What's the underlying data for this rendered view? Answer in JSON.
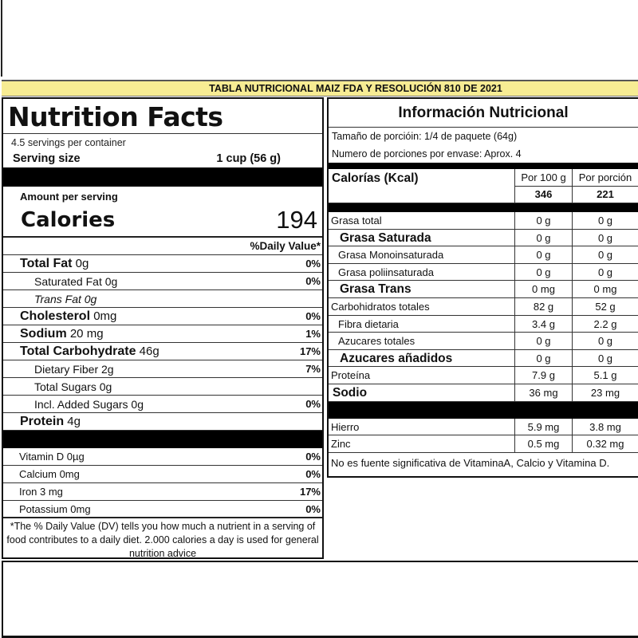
{
  "banner": "TABLA NUTRICIONAL MAIZ FDA Y RESOLUCIÓN 810 DE 2021",
  "left": {
    "title": "Nutrition Facts",
    "servings": "4.5 servings per container",
    "serving_size_label": "Serving size",
    "serving_size_value": "1 cup (56 g)",
    "amount_per_serving": "Amount per serving",
    "calories_label": "Calories",
    "calories_value": "194",
    "dv_header": "%Daily Value*",
    "rows": [
      {
        "name": "Total Fat",
        "amount": "0g",
        "pct": "0%",
        "style": "main"
      },
      {
        "name": "Saturated Fat 0g",
        "amount": "",
        "pct": "0%",
        "style": "ind"
      },
      {
        "name": "Trans Fat 0g",
        "amount": "",
        "pct": "",
        "style": "ind-italic"
      },
      {
        "name": "Cholesterol",
        "amount": "0mg",
        "pct": "0%",
        "style": "main"
      },
      {
        "name": "Sodium",
        "amount": "20 mg",
        "pct": "1%",
        "style": "main"
      },
      {
        "name": "Total Carbohydrate",
        "amount": "46g",
        "pct": "17%",
        "style": "main"
      },
      {
        "name": "Dietary Fiber 2g",
        "amount": "",
        "pct": "7%",
        "style": "ind"
      },
      {
        "name": "Total Sugars 0g",
        "amount": "",
        "pct": "",
        "style": "ind"
      },
      {
        "name": "Incl. Added Sugars 0g",
        "amount": "",
        "pct": "0%",
        "style": "ind"
      },
      {
        "name": "Protein",
        "amount": "4g",
        "pct": "",
        "style": "main"
      }
    ],
    "micros": [
      {
        "name": "Vitamin D  0µg",
        "pct": "0%"
      },
      {
        "name": "Calcium 0mg",
        "pct": "0%"
      },
      {
        "name": "Iron 3 mg",
        "pct": "17%"
      },
      {
        "name": "Potassium 0mg",
        "pct": "0%"
      }
    ],
    "footnote": "*The % Daily Value (DV) tells you how much a nutrient in a serving of food contributes to a daily diet. 2.000 calories a day is used for general nutrition advice"
  },
  "right": {
    "title": "Información Nutricional",
    "portion": "Tamaño de porcióin: 1/4 de paquete (64g)",
    "portions_per_pack": "Numero de porciones por envase: Aprox. 4",
    "calories_label": "Calorías (Kcal)",
    "col1": "Por 100 g",
    "col2": "Por porción",
    "cal1": "346",
    "cal2": "221",
    "rows": [
      {
        "name": "Grasa total",
        "v1": "0 g",
        "v2": "0 g",
        "style": ""
      },
      {
        "name": "Grasa Saturada",
        "v1": "0 g",
        "v2": "0 g",
        "style": "bold"
      },
      {
        "name": "Grasa Monoinsaturada",
        "v1": "0 g",
        "v2": "0 g",
        "style": "ind"
      },
      {
        "name": "Grasa poliinsaturada",
        "v1": "0 g",
        "v2": "0 g",
        "style": "ind"
      },
      {
        "name": "Grasa Trans",
        "v1": "0 mg",
        "v2": "0 mg",
        "style": "bold"
      },
      {
        "name": "Carbohidratos totales",
        "v1": "82 g",
        "v2": "52 g",
        "style": ""
      },
      {
        "name": "Fibra dietaria",
        "v1": "3.4 g",
        "v2": "2.2 g",
        "style": "ind"
      },
      {
        "name": "Azucares totales",
        "v1": "0 g",
        "v2": "0 g",
        "style": "ind"
      },
      {
        "name": "Azucares añadidos",
        "v1": "0 g",
        "v2": "0 g",
        "style": "bold"
      },
      {
        "name": "Proteína",
        "v1": "7.9 g",
        "v2": "5.1 g",
        "style": ""
      },
      {
        "name": "Sodio",
        "v1": "36 mg",
        "v2": "23 mg",
        "style": "sod"
      }
    ],
    "minerals": [
      {
        "name": "Hierro",
        "v1": "5.9 mg",
        "v2": "3.8 mg"
      },
      {
        "name": "Zinc",
        "v1": "0.5 mg",
        "v2": "0.32 mg"
      }
    ],
    "note": "No es fuente significativa  de VitaminaA, Calcio y Vitamina D."
  }
}
